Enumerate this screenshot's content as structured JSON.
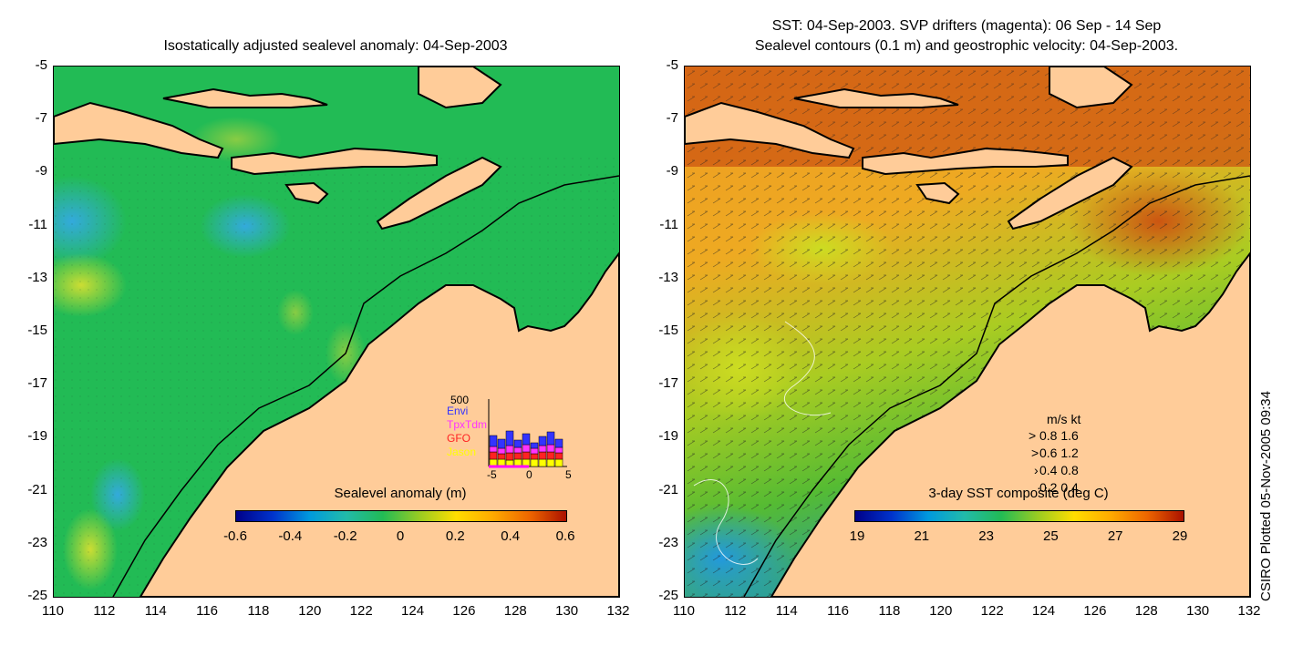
{
  "left_panel": {
    "title": "Isostatically adjusted sealevel anomaly: 04-Sep-2003",
    "y_ticks": [
      "-5",
      "-7",
      "-9",
      "-11",
      "-13",
      "-15",
      "-17",
      "-19",
      "-21",
      "-23",
      "-25"
    ],
    "x_ticks": [
      "110",
      "112",
      "114",
      "116",
      "118",
      "120",
      "122",
      "124",
      "126",
      "128",
      "130",
      "132"
    ],
    "colorbar": {
      "label": "Sealevel anomaly (m)",
      "ticks": [
        "-0.6",
        "-0.4",
        "-0.2",
        "0",
        "0.2",
        "0.4",
        "0.6"
      ]
    },
    "inset": {
      "max_label": "500",
      "legend": [
        {
          "name": "Envi",
          "color": "#3333ff"
        },
        {
          "name": "TpxTdm",
          "color": "#ff33ff"
        },
        {
          "name": "GFO",
          "color": "#ff2222"
        },
        {
          "name": "Jason",
          "color": "#ffff00"
        }
      ],
      "x_ticks": [
        "-5",
        "0",
        "5"
      ]
    }
  },
  "right_panel": {
    "title_line1": "SST: 04-Sep-2003. SVP drifters (magenta): 06 Sep - 14 Sep",
    "title_line2": "Sealevel contours (0.1 m) and geostrophic velocity: 04-Sep-2003.",
    "y_ticks": [
      "-5",
      "-7",
      "-9",
      "-11",
      "-13",
      "-15",
      "-17",
      "-19",
      "-21",
      "-23",
      "-25"
    ],
    "x_ticks": [
      "110",
      "112",
      "114",
      "116",
      "118",
      "120",
      "122",
      "124",
      "126",
      "128",
      "130",
      "132"
    ],
    "colorbar": {
      "label": "3-day SST composite (deg C)",
      "ticks": [
        "19",
        "21",
        "23",
        "25",
        "27",
        "29"
      ]
    },
    "velocity_key": {
      "header_ms": "m/s",
      "header_kt": "kt",
      "rows": [
        {
          "ms": "0.8",
          "kt": "1.6"
        },
        {
          "ms": "0.6",
          "kt": "1.2"
        },
        {
          "ms": "0.4",
          "kt": "0.8"
        },
        {
          "ms": "0.2",
          "kt": "0.4"
        }
      ]
    }
  },
  "credit": "CSIRO Plotted 05-Nov-2005 09:34",
  "colors": {
    "land": "#ffcc99",
    "ocean_sla": "#22bb55",
    "ocean_sst": "#f0a020"
  }
}
